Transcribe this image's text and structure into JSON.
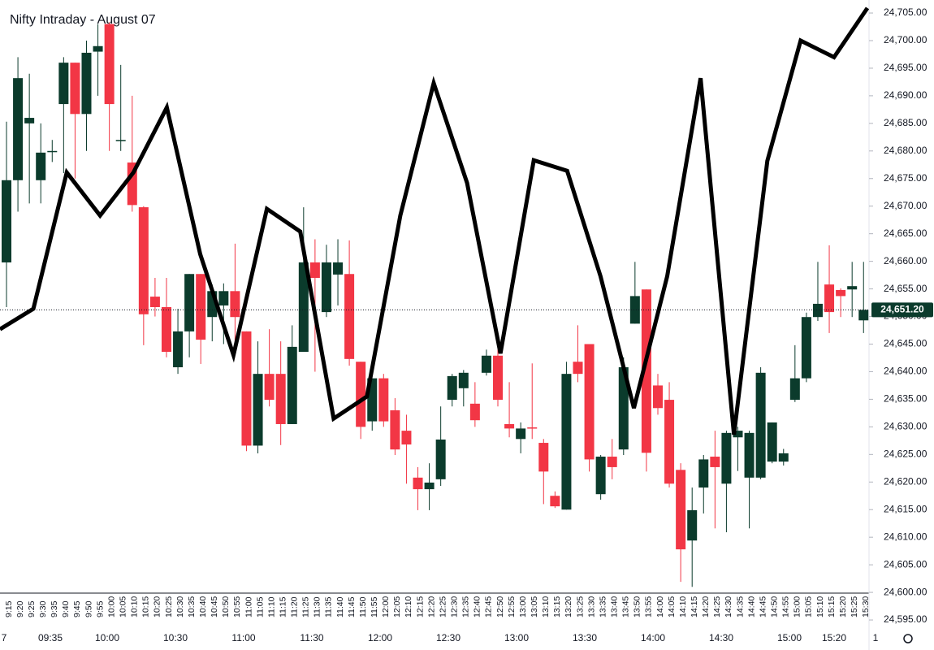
{
  "chart_data": {
    "type": "candlestick",
    "title": "Nifty Intraday - August 07",
    "categories": [
      "9:15",
      "9:20",
      "9:25",
      "9:30",
      "9:35",
      "9:40",
      "9:45",
      "9:50",
      "9:55",
      "10:00",
      "10:05",
      "10:10",
      "10:15",
      "10:20",
      "10:25",
      "10:30",
      "10:35",
      "10:40",
      "10:45",
      "10:50",
      "10:55",
      "11:00",
      "11:05",
      "11:10",
      "11:15",
      "11:20",
      "11:25",
      "11:30",
      "11:35",
      "11:40",
      "11:45",
      "11:50",
      "11:55",
      "12:00",
      "12:05",
      "12:10",
      "12:15",
      "12:20",
      "12:25",
      "12:30",
      "12:35",
      "12:40",
      "12:45",
      "12:50",
      "12:55",
      "13:00",
      "13:05",
      "13:10",
      "13:15",
      "13:20",
      "13:25",
      "13:30",
      "13:35",
      "13:40",
      "13:45",
      "13:50",
      "13:55",
      "14:00",
      "14:05",
      "14:10",
      "14:15",
      "14:20",
      "14:25",
      "14:30",
      "14:35",
      "14:40",
      "14:45",
      "14:50",
      "14:55",
      "15:00",
      "15:05",
      "15:10",
      "15:15",
      "15:20",
      "15:25",
      "15:30"
    ],
    "candles": {
      "open": [
        24659.8,
        24674.7,
        24685,
        24674.7,
        24680,
        24688.5,
        24696,
        24686.7,
        24698,
        24703,
        24682,
        24677.9,
        24669.8,
        24653.6,
        24651.7,
        24640.8,
        24647.3,
        24657.7,
        24649.9,
        24652,
        24654.6,
        24647.3,
        24626.6,
        24639.6,
        24639.6,
        24630.5,
        24643.6,
        24659.8,
        24650.8,
        24657.6,
        24657.7,
        24641.8,
        24631,
        24638.8,
        24633,
        24629.3,
        24620.8,
        24618.7,
        24620.5,
        24634.9,
        24637,
        24634.2,
        24639.8,
        24642.9,
        24630.5,
        24627.8,
        24629.9,
        24627.1,
        24617.5,
        24615,
        24641.8,
        24645,
        24617.8,
        24624.6,
        24625.9,
        24648.7,
        24654.9,
        24637.5,
        24634.9,
        24622.2,
        24609.4,
        24619,
        24624.6,
        24619.7,
        24628.1,
        24620.8,
        24620.8,
        24623.7,
        24623.7,
        24634.9,
        24638.8,
        24649.9,
        24655.8,
        24654.8,
        24654.9,
        24649.3
      ],
      "high": [
        24685.3,
        24697,
        24694,
        24685,
        24682,
        24697,
        24696,
        24700,
        24703,
        24703.3,
        24695.6,
        24690,
        24670,
        24657,
        24657,
        24651.4,
        24657.7,
        24657.7,
        24655.8,
        24656,
        24663.2,
        24647.3,
        24645.5,
        24647.7,
        24645.5,
        24648.4,
        24669.8,
        24664,
        24663,
        24664,
        24663.8,
        24641.8,
        24638.8,
        24639.6,
        24635.2,
        24632.2,
        24622.7,
        24623.4,
        24633.7,
        24639.6,
        24640.3,
        24638.1,
        24644,
        24644,
        24638.1,
        24630.8,
        24641.5,
        24627.8,
        24618.3,
        24641.8,
        24648.4,
        24645,
        24624.9,
        24627.8,
        24642.6,
        24659.9,
        24654.9,
        24639.6,
        24638.1,
        24623.4,
        24619,
        24624.9,
        24629.3,
        24629.3,
        24630,
        24629.3,
        24640.8,
        24630.8,
        24626,
        24644.8,
        24650.7,
        24659.9,
        24662.9,
        24655.1,
        24659.9,
        24659.9
      ],
      "low": [
        24651.7,
        24669,
        24670.5,
        24670.5,
        24678,
        24676,
        24675,
        24680,
        24690,
        24680,
        24680,
        24669,
        24644.8,
        24650,
        24642.6,
        24639.6,
        24642.6,
        24641.4,
        24645.5,
        24645,
        24645,
        24625.6,
        24625.2,
        24633.7,
        24626.7,
        24630.5,
        24643.6,
        24640,
        24649.9,
        24652,
        24641.1,
        24627.8,
        24629.3,
        24630,
        24624.9,
        24619.7,
        24614.9,
        24614.9,
        24619.3,
        24633.7,
        24633.7,
        24630,
        24639.3,
        24633.7,
        24628.1,
        24625.2,
        24627.8,
        24616,
        24615.3,
        24615,
        24638.1,
        24621.9,
        24616.8,
        24620.5,
        24624.9,
        24648.7,
        24621.9,
        24632.2,
        24619,
        24601.9,
        24601,
        24614.3,
        24611.6,
        24610.9,
        24622,
        24611.6,
        24620.5,
        24623.4,
        24623,
        24634.5,
        24638.1,
        24649.2,
        24647,
        24649.9,
        24649.9,
        24647
      ],
      "close": [
        24674.7,
        24693.2,
        24686,
        24679.7,
        24680,
        24696,
        24686.7,
        24697.8,
        24699,
        24688.5,
        24682,
        24670.2,
        24650.4,
        24651.7,
        24643.6,
        24647.3,
        24657.7,
        24645.8,
        24654.6,
        24654.6,
        24649.9,
        24626.6,
        24639.6,
        24634.9,
        24630.5,
        24644.5,
        24659.8,
        24657,
        24659.8,
        24659.8,
        24642.3,
        24630,
        24638.8,
        24631,
        24625.9,
        24626.8,
        24618.7,
        24619.9,
        24627.7,
        24639.2,
        24639.8,
        24631.2,
        24642.9,
        24634.9,
        24629.7,
        24629.7,
        24629.7,
        24621.9,
        24615.6,
        24639.6,
        24639.6,
        24624.1,
        24624.6,
        24622.7,
        24640.8,
        24653.7,
        24625.3,
        24633.4,
        24619.7,
        24607.8,
        24614.9,
        24624.1,
        24622.7,
        24628.9,
        24629.3,
        24628.9,
        24639.8,
        24630.8,
        24625.2,
        24638.8,
        24649.9,
        24652.3,
        24650.8,
        24653.7,
        24655.5,
        24651.2
      ]
    },
    "up_color": "#0b3b2c",
    "down_color": "#f23645",
    "overlay_line": {
      "color": "#000000",
      "values": [
        24647.7,
        24651.4,
        24676.1,
        24668.3,
        24676.1,
        24687.9,
        24661.3,
        24643.0,
        24669.5,
        24665.4,
        24631.5,
        24635.5,
        24668.3,
        24692.3,
        24674.2,
        24643.3,
        24678.3,
        24676.4,
        24657.3,
        24633.4,
        24657.3,
        24693.2,
        24628.6,
        24678.2,
        24700.0,
        24697.0,
        24705.9
      ]
    },
    "last_price": {
      "value": 24651.2,
      "label": "24,651.20"
    },
    "time_labels": [
      "7",
      "09:35",
      "10:00",
      "10:30",
      "11:00",
      "11:30",
      "12:00",
      "12:30",
      "13:00",
      "13:30",
      "14:00",
      "14:30",
      "15:00",
      "15:20",
      "1"
    ],
    "ylim": [
      24590,
      24707.36
    ],
    "yticks": [
      {
        "value": 24595,
        "label": "24,595.00"
      },
      {
        "value": 24600,
        "label": "24,600.00"
      },
      {
        "value": 24605,
        "label": "24,605.00"
      },
      {
        "value": 24610,
        "label": "24,610.00"
      },
      {
        "value": 24615,
        "label": "24,615.00"
      },
      {
        "value": 24620,
        "label": "24,620.00"
      },
      {
        "value": 24625,
        "label": "24,625.00"
      },
      {
        "value": 24630,
        "label": "24,630.00"
      },
      {
        "value": 24635,
        "label": "24,635.00"
      },
      {
        "value": 24640,
        "label": "24,640.00"
      },
      {
        "value": 24645,
        "label": "24,645.00"
      },
      {
        "value": 24650,
        "label": "24,650.00"
      },
      {
        "value": 24655,
        "label": "24,655.00"
      },
      {
        "value": 24660,
        "label": "24,660.00"
      },
      {
        "value": 24665,
        "label": "24,665.00"
      },
      {
        "value": 24670,
        "label": "24,670.00"
      },
      {
        "value": 24675,
        "label": "24,675.00"
      },
      {
        "value": 24680,
        "label": "24,680.00"
      },
      {
        "value": 24685,
        "label": "24,685.00"
      },
      {
        "value": 24690,
        "label": "24,690.00"
      },
      {
        "value": 24695,
        "label": "24,695.00"
      },
      {
        "value": 24700,
        "label": "24,700.00"
      },
      {
        "value": 24705,
        "label": "24,705.00"
      }
    ],
    "grid": false
  }
}
